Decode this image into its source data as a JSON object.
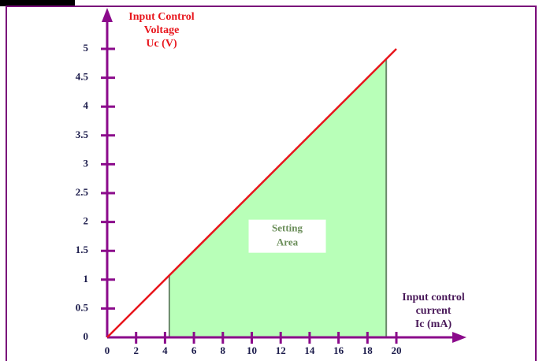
{
  "chart_data": {
    "type": "line",
    "y_label": [
      "Input Control",
      "Voltage",
      "Uc (V)"
    ],
    "x_label": [
      "Input control",
      "current",
      "Ic (mA)"
    ],
    "series": [
      {
        "color": "#e8161d",
        "x": [
          0,
          20
        ],
        "values": [
          0,
          5
        ]
      }
    ],
    "area": {
      "name": [
        "Setting",
        "Area"
      ],
      "color": "#b8ffb8",
      "x": [
        4.3,
        19.3
      ],
      "values": [
        1.075,
        4.825
      ]
    },
    "xlim": [
      0,
      20
    ],
    "xticks": [
      0,
      2,
      4,
      6,
      8,
      10,
      12,
      14,
      16,
      18,
      20
    ],
    "ylim": [
      0,
      5
    ],
    "yticks": [
      0,
      0.5,
      1,
      1.5,
      2,
      2.5,
      3,
      3.5,
      4,
      4.5,
      5
    ],
    "axis_color": "#8b0a8b"
  }
}
